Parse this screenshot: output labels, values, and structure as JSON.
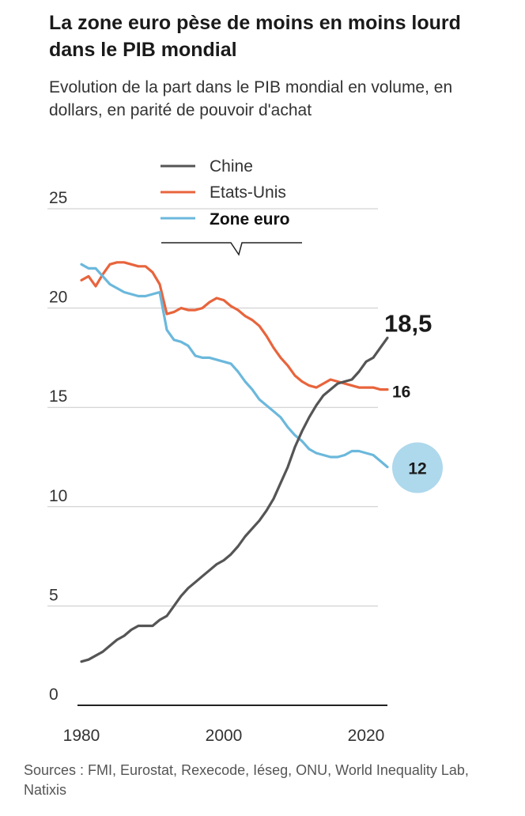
{
  "title": "La zone euro pèse de moins en moins lourd dans le PIB mondial",
  "subtitle": "Evolution de la part dans le PIB mondial en volume, en dollars, en parité de pouvoir d'achat",
  "source": "Sources : FMI, Eurostat, Rexecode, Iéseg, ONU, World Inequality Lab, Natixis",
  "colors": {
    "chine": "#555555",
    "etats_unis": "#e8643c",
    "zone_euro": "#6bb8dc",
    "bubble": "#aed8ec",
    "grid": "#c8c8c8",
    "axis": "#222222"
  },
  "chart_data": {
    "type": "line",
    "title": "La zone euro pèse de moins en moins lourd dans le PIB mondial",
    "subtitle": "Evolution de la part dans le PIB mondial en volume, en dollars, en parité de pouvoir d'achat",
    "xlabel": "",
    "ylabel": "",
    "xlim": [
      1980,
      2023
    ],
    "ylim": [
      0,
      25
    ],
    "grid": "horizontal",
    "legend_position": "top-center",
    "x_ticks": [
      1980,
      2000,
      2020
    ],
    "x_tick_labels": [
      "1980",
      "2000",
      "2020"
    ],
    "y_ticks": [
      0,
      5,
      10,
      15,
      20,
      25
    ],
    "y_tick_labels": [
      "0",
      "5",
      "10",
      "15",
      "20",
      "25"
    ],
    "x": [
      1980,
      1981,
      1982,
      1983,
      1984,
      1985,
      1986,
      1987,
      1988,
      1989,
      1990,
      1991,
      1992,
      1993,
      1994,
      1995,
      1996,
      1997,
      1998,
      1999,
      2000,
      2001,
      2002,
      2003,
      2004,
      2005,
      2006,
      2007,
      2008,
      2009,
      2010,
      2011,
      2012,
      2013,
      2014,
      2015,
      2016,
      2017,
      2018,
      2019,
      2020,
      2021,
      2022,
      2023
    ],
    "series": [
      {
        "name": "Chine",
        "key": "chine",
        "end_label": "18,5",
        "values": [
          2.2,
          2.3,
          2.5,
          2.7,
          3.0,
          3.3,
          3.5,
          3.8,
          4.0,
          4.0,
          4.0,
          4.3,
          4.5,
          5.0,
          5.5,
          5.9,
          6.2,
          6.5,
          6.8,
          7.1,
          7.3,
          7.6,
          8.0,
          8.5,
          8.9,
          9.3,
          9.8,
          10.4,
          11.2,
          12.0,
          13.0,
          13.8,
          14.5,
          15.1,
          15.6,
          15.9,
          16.2,
          16.3,
          16.4,
          16.8,
          17.3,
          17.5,
          18.0,
          18.5
        ]
      },
      {
        "name": "Etats-Unis",
        "key": "etats_unis",
        "end_label": "16",
        "values": [
          21.4,
          21.6,
          21.1,
          21.7,
          22.2,
          22.3,
          22.3,
          22.2,
          22.1,
          22.1,
          21.8,
          21.2,
          19.7,
          19.8,
          20.0,
          19.9,
          19.9,
          20.0,
          20.3,
          20.5,
          20.4,
          20.1,
          19.9,
          19.6,
          19.4,
          19.1,
          18.6,
          18.0,
          17.5,
          17.1,
          16.6,
          16.3,
          16.1,
          16.0,
          16.2,
          16.4,
          16.3,
          16.2,
          16.1,
          16.0,
          16.0,
          16.0,
          15.9,
          15.9
        ]
      },
      {
        "name": "Zone euro",
        "key": "zone_euro",
        "end_label": "12",
        "values": [
          22.2,
          22.0,
          22.0,
          21.6,
          21.2,
          21.0,
          20.8,
          20.7,
          20.6,
          20.6,
          20.7,
          20.8,
          18.9,
          18.4,
          18.3,
          18.1,
          17.6,
          17.5,
          17.5,
          17.4,
          17.3,
          17.2,
          16.8,
          16.3,
          15.9,
          15.4,
          15.1,
          14.8,
          14.5,
          14.0,
          13.6,
          13.3,
          12.9,
          12.7,
          12.6,
          12.5,
          12.5,
          12.6,
          12.8,
          12.8,
          12.7,
          12.6,
          12.3,
          12.0
        ]
      }
    ]
  }
}
